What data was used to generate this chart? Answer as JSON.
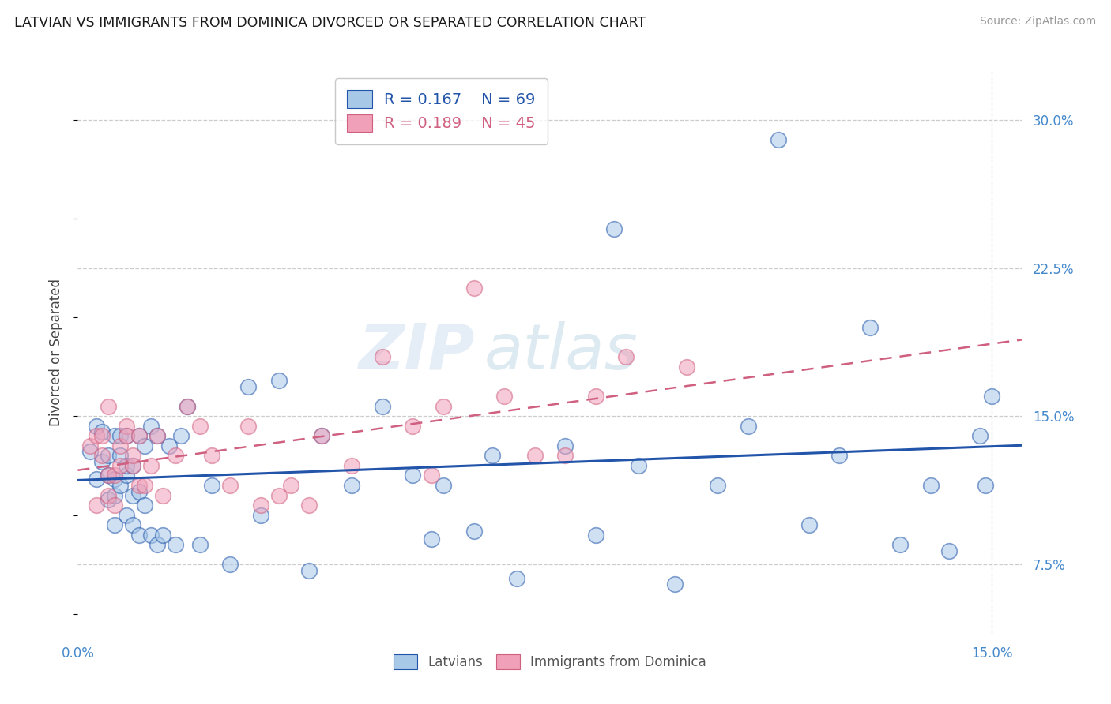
{
  "title": "LATVIAN VS IMMIGRANTS FROM DOMINICA DIVORCED OR SEPARATED CORRELATION CHART",
  "source": "Source: ZipAtlas.com",
  "ylabel": "Divorced or Separated",
  "xlim": [
    0.0,
    0.155
  ],
  "ylim": [
    0.04,
    0.325
  ],
  "yticks": [
    0.075,
    0.15,
    0.225,
    0.3
  ],
  "ytick_labels": [
    "7.5%",
    "15.0%",
    "22.5%",
    "30.0%"
  ],
  "xticks": [
    0.0,
    0.15
  ],
  "xtick_labels": [
    "0.0%",
    "15.0%"
  ],
  "latvian_color": "#A8C8E8",
  "dominica_color": "#F0A0B8",
  "latvian_line_color": "#2255AA",
  "dominica_line_color": "#D06080",
  "tick_label_color": "#4488CC",
  "legend_R1": "R = 0.167",
  "legend_N1": "N = 69",
  "legend_R2": "R = 0.189",
  "legend_N2": "N = 45",
  "watermark_top": "ZIP",
  "watermark_bot": "atlas",
  "background_color": "#FFFFFF",
  "grid_color": "#CCCCCC",
  "latvian_x": [
    0.002,
    0.003,
    0.003,
    0.004,
    0.004,
    0.005,
    0.005,
    0.005,
    0.006,
    0.006,
    0.006,
    0.006,
    0.007,
    0.007,
    0.007,
    0.008,
    0.008,
    0.008,
    0.008,
    0.009,
    0.009,
    0.009,
    0.01,
    0.01,
    0.01,
    0.011,
    0.011,
    0.012,
    0.012,
    0.013,
    0.013,
    0.014,
    0.015,
    0.016,
    0.017,
    0.018,
    0.02,
    0.022,
    0.025,
    0.028,
    0.03,
    0.033,
    0.038,
    0.04,
    0.045,
    0.05,
    0.055,
    0.058,
    0.06,
    0.065,
    0.068,
    0.072,
    0.08,
    0.085,
    0.088,
    0.092,
    0.098,
    0.105,
    0.11,
    0.115,
    0.12,
    0.125,
    0.13,
    0.135,
    0.14,
    0.143,
    0.148,
    0.149,
    0.15
  ],
  "latvian_y": [
    0.132,
    0.118,
    0.145,
    0.127,
    0.142,
    0.108,
    0.13,
    0.12,
    0.118,
    0.11,
    0.14,
    0.095,
    0.115,
    0.13,
    0.14,
    0.1,
    0.12,
    0.125,
    0.14,
    0.095,
    0.11,
    0.125,
    0.09,
    0.112,
    0.14,
    0.105,
    0.135,
    0.09,
    0.145,
    0.085,
    0.14,
    0.09,
    0.135,
    0.085,
    0.14,
    0.155,
    0.085,
    0.115,
    0.075,
    0.165,
    0.1,
    0.168,
    0.072,
    0.14,
    0.115,
    0.155,
    0.12,
    0.088,
    0.115,
    0.092,
    0.13,
    0.068,
    0.135,
    0.09,
    0.245,
    0.125,
    0.065,
    0.115,
    0.145,
    0.29,
    0.095,
    0.13,
    0.195,
    0.085,
    0.115,
    0.082,
    0.14,
    0.115,
    0.16
  ],
  "dominica_x": [
    0.002,
    0.003,
    0.003,
    0.004,
    0.004,
    0.005,
    0.005,
    0.005,
    0.006,
    0.006,
    0.007,
    0.007,
    0.008,
    0.008,
    0.009,
    0.009,
    0.01,
    0.01,
    0.011,
    0.012,
    0.013,
    0.014,
    0.016,
    0.018,
    0.02,
    0.022,
    0.025,
    0.028,
    0.03,
    0.033,
    0.035,
    0.038,
    0.04,
    0.045,
    0.05,
    0.055,
    0.058,
    0.06,
    0.065,
    0.07,
    0.075,
    0.08,
    0.085,
    0.09,
    0.1
  ],
  "dominica_y": [
    0.135,
    0.14,
    0.105,
    0.14,
    0.13,
    0.11,
    0.12,
    0.155,
    0.12,
    0.105,
    0.135,
    0.125,
    0.145,
    0.14,
    0.125,
    0.13,
    0.115,
    0.14,
    0.115,
    0.125,
    0.14,
    0.11,
    0.13,
    0.155,
    0.145,
    0.13,
    0.115,
    0.145,
    0.105,
    0.11,
    0.115,
    0.105,
    0.14,
    0.125,
    0.18,
    0.145,
    0.12,
    0.155,
    0.215,
    0.16,
    0.13,
    0.13,
    0.16,
    0.18,
    0.175
  ]
}
